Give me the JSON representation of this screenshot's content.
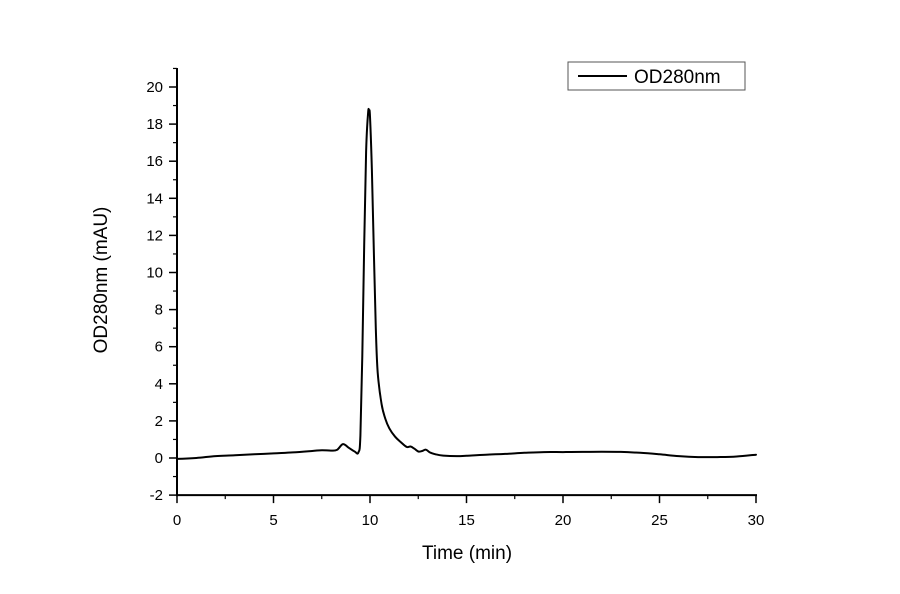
{
  "chart_data": {
    "type": "line",
    "title": "",
    "xlabel": "Time (min)",
    "ylabel": "OD280nm (mAU)",
    "xlim": [
      0,
      30
    ],
    "ylim": [
      -2,
      21
    ],
    "x_ticks": [
      "0",
      "5",
      "10",
      "15",
      "20",
      "25",
      "30"
    ],
    "y_ticks": [
      "-2",
      "0",
      "2",
      "4",
      "6",
      "8",
      "10",
      "12",
      "14",
      "16",
      "18",
      "20"
    ],
    "grid": false,
    "legend": {
      "position": "top-right",
      "entries": [
        "OD280nm"
      ]
    },
    "series": [
      {
        "name": "OD280nm",
        "color": "#000000",
        "x": [
          0,
          1,
          2,
          3,
          4,
          5,
          6,
          7,
          7.5,
          8.0,
          8.3,
          8.6,
          8.9,
          9.2,
          9.4,
          9.5,
          9.6,
          9.7,
          9.8,
          9.9,
          9.95,
          10.0,
          10.1,
          10.2,
          10.3,
          10.4,
          10.6,
          10.8,
          11.0,
          11.3,
          11.6,
          11.9,
          12.1,
          12.3,
          12.5,
          12.7,
          12.9,
          13.1,
          13.4,
          13.8,
          14.5,
          15,
          16,
          17,
          18,
          19,
          20,
          21,
          22,
          23,
          24,
          25,
          26,
          27,
          28,
          29,
          30
        ],
        "y": [
          -0.05,
          0.0,
          0.1,
          0.15,
          0.2,
          0.25,
          0.3,
          0.38,
          0.42,
          0.4,
          0.45,
          0.75,
          0.55,
          0.35,
          0.3,
          1.2,
          5.5,
          11.5,
          16.5,
          18.6,
          18.7,
          18.4,
          15.5,
          11.0,
          7.0,
          4.6,
          2.9,
          2.1,
          1.6,
          1.15,
          0.85,
          0.6,
          0.62,
          0.5,
          0.35,
          0.38,
          0.45,
          0.3,
          0.2,
          0.13,
          0.1,
          0.12,
          0.18,
          0.22,
          0.28,
          0.32,
          0.32,
          0.33,
          0.34,
          0.33,
          0.28,
          0.2,
          0.1,
          0.05,
          0.05,
          0.08,
          0.18
        ]
      }
    ]
  }
}
